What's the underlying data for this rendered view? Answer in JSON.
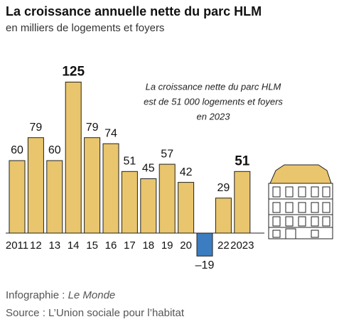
{
  "chart_data": {
    "type": "bar",
    "title": "La croissance annuelle nette du parc HLM",
    "subtitle": "en milliers de logements et foyers",
    "categories": [
      "2011",
      "12",
      "13",
      "14",
      "15",
      "16",
      "17",
      "18",
      "19",
      "20",
      null,
      "22",
      "2023"
    ],
    "values": [
      60,
      79,
      60,
      125,
      79,
      74,
      51,
      45,
      57,
      42,
      -19,
      29,
      51
    ],
    "value_labels": [
      "60",
      "79",
      "60",
      "125",
      "79",
      "74",
      "51",
      "45",
      "57",
      "42",
      "–19",
      "29",
      "51"
    ],
    "bold_labels": [
      3,
      12
    ],
    "color": "#e9c56d",
    "negative_color": "#3b7dc0",
    "annotation": [
      "La croissance nette du parc HLM",
      "est de 51 000 logements et foyers",
      "en 2023"
    ],
    "credit": [
      "Infographie : ",
      "Le Monde"
    ],
    "source": "Source : L’Union sociale pour l’habitat"
  }
}
